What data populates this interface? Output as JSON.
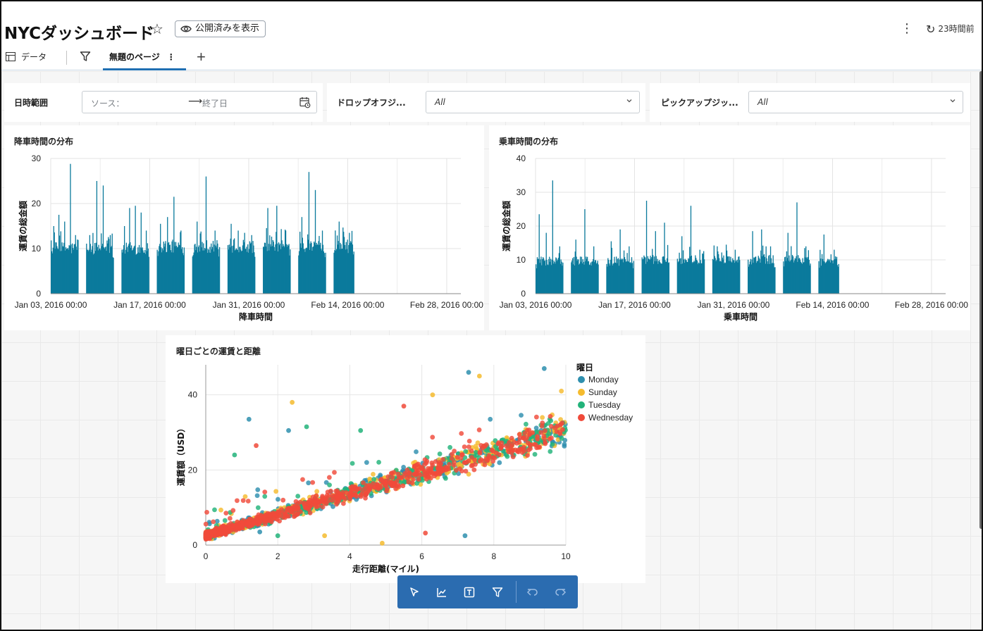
{
  "header": {
    "title": "NYCダッシュボード",
    "published_label": "公開済みを表示",
    "refresh_label": "23時間前"
  },
  "tabs": {
    "data_label": "データ",
    "page_label": "無題のページ"
  },
  "filters": {
    "date_range": {
      "label": "日時範囲",
      "start_placeholder": "ソース：",
      "end_placeholder": "終了日"
    },
    "dropoff": {
      "label": "ドロップオフジ...",
      "value": "All"
    },
    "pickup": {
      "label": "ピックアップジッ...",
      "value": "All"
    }
  },
  "charts": {
    "dropoff_hist": {
      "title": "降車時間の分布",
      "xlabel": "降車時間",
      "ylabel": "運賃の総金額"
    },
    "pickup_hist": {
      "title": "乗車時間の分布",
      "xlabel": "乗車時間",
      "ylabel": "運賃の総金額"
    },
    "scatter": {
      "title": "曜日ごとの運賃と距離",
      "xlabel": "走行距離(マイル)",
      "ylabel": "運賃額（USD）",
      "legend_title": "曜日"
    }
  },
  "chart_data": [
    {
      "type": "bar",
      "title": "降車時間の分布",
      "xlabel": "降車時間",
      "ylabel": "運賃の総金額",
      "x_ticks": [
        "Jan 03, 2016 00:00",
        "Jan 17, 2016 00:00",
        "Jan 31, 2016 00:00",
        "Feb 14, 2016 00:00",
        "Feb 28, 2016 00:00"
      ],
      "y_ticks": [
        0,
        10,
        20,
        30
      ],
      "ylim": [
        0,
        30
      ],
      "xlim": [
        "2016-01-03",
        "2016-03-01"
      ],
      "grid": true,
      "color": "#0b7a9c",
      "data_blocks": [
        {
          "start": "2016-01-03",
          "end": "2016-01-06",
          "typical": 11.5,
          "peaks": [
            15,
            17.5,
            16,
            28.8,
            13
          ]
        },
        {
          "start": "2016-01-08",
          "end": "2016-01-11",
          "typical": 11.5,
          "peaks": [
            13,
            25,
            24,
            13
          ]
        },
        {
          "start": "2016-01-13",
          "end": "2016-01-16",
          "typical": 11.5,
          "peaks": [
            15,
            19,
            19.5,
            18,
            14
          ]
        },
        {
          "start": "2016-01-18",
          "end": "2016-01-21",
          "typical": 12,
          "peaks": [
            15.5,
            17,
            21.5,
            14
          ]
        },
        {
          "start": "2016-01-23",
          "end": "2016-01-26",
          "typical": 12,
          "peaks": [
            16,
            26,
            14
          ]
        },
        {
          "start": "2016-01-28",
          "end": "2016-01-31",
          "typical": 12,
          "peaks": [
            15.5,
            14,
            13.5,
            13
          ]
        },
        {
          "start": "2016-02-02",
          "end": "2016-02-05",
          "typical": 12,
          "peaks": [
            19,
            19.5,
            14
          ]
        },
        {
          "start": "2016-02-07",
          "end": "2016-02-10",
          "typical": 12,
          "peaks": [
            17,
            27,
            23,
            14
          ]
        },
        {
          "start": "2016-02-12",
          "end": "2016-02-14",
          "typical": 12,
          "peaks": [
            16,
            13.5
          ]
        }
      ]
    },
    {
      "type": "bar",
      "title": "乗車時間の分布",
      "xlabel": "乗車時間",
      "ylabel": "運賃の総金額",
      "x_ticks": [
        "Jan 03, 2016 00:00",
        "Jan 17, 2016 00:00",
        "Jan 31, 2016 00:00",
        "Feb 14, 2016 00:00",
        "Feb 28, 2016 00:00"
      ],
      "y_ticks": [
        0,
        10,
        20,
        30,
        40
      ],
      "ylim": [
        0,
        40
      ],
      "xlim": [
        "2016-01-03",
        "2016-03-01"
      ],
      "grid": true,
      "color": "#0b7a9c",
      "data_blocks": [
        {
          "start": "2016-01-03",
          "end": "2016-01-06",
          "typical": 11,
          "peaks": [
            23.5,
            18,
            33.5,
            14
          ]
        },
        {
          "start": "2016-01-08",
          "end": "2016-01-11",
          "typical": 11,
          "peaks": [
            16,
            25,
            14
          ]
        },
        {
          "start": "2016-01-13",
          "end": "2016-01-16",
          "typical": 11,
          "peaks": [
            15.5,
            19,
            14
          ]
        },
        {
          "start": "2016-01-18",
          "end": "2016-01-21",
          "typical": 11.5,
          "peaks": [
            27.5,
            18.5,
            21
          ]
        },
        {
          "start": "2016-01-23",
          "end": "2016-01-26",
          "typical": 11.5,
          "peaks": [
            17,
            26,
            13
          ]
        },
        {
          "start": "2016-01-28",
          "end": "2016-01-31",
          "typical": 11.5,
          "peaks": [
            14,
            14.5,
            13
          ]
        },
        {
          "start": "2016-02-02",
          "end": "2016-02-05",
          "typical": 11.5,
          "peaks": [
            18.5,
            19,
            14
          ]
        },
        {
          "start": "2016-02-07",
          "end": "2016-02-10",
          "typical": 11.5,
          "peaks": [
            18,
            27,
            14
          ]
        },
        {
          "start": "2016-02-12",
          "end": "2016-02-14",
          "typical": 11,
          "peaks": [
            17.5,
            13
          ]
        }
      ]
    },
    {
      "type": "scatter",
      "title": "曜日ごとの運賃と距離",
      "xlabel": "走行距離(マイル)",
      "ylabel": "運賃額（USD）",
      "xlim": [
        0,
        10
      ],
      "ylim": [
        0,
        48
      ],
      "x_ticks": [
        0,
        2,
        4,
        6,
        8,
        10
      ],
      "y_ticks": [
        0,
        20,
        40
      ],
      "grid": true,
      "legend_title": "曜日",
      "legend_position": "right",
      "series": [
        {
          "name": "Monday",
          "color": "#2e8fae",
          "trend": [
            2.5,
            2.8
          ],
          "outliers": [
            [
              7.3,
              46
            ],
            [
              9.4,
              47
            ],
            [
              1.2,
              33.5
            ],
            [
              2.3,
              30.5
            ],
            [
              7.2,
              2.5
            ],
            [
              1.5,
              3.5
            ]
          ]
        },
        {
          "name": "Sunday",
          "color": "#f5bb2e",
          "trend": [
            2.5,
            2.8
          ],
          "outliers": [
            [
              6.3,
              40
            ],
            [
              7.6,
              45
            ],
            [
              2.4,
              38
            ],
            [
              3.3,
              2.5
            ],
            [
              4.9,
              0.5
            ]
          ]
        },
        {
          "name": "Tuesday",
          "color": "#22b37a",
          "trend": [
            2.5,
            2.8
          ],
          "outliers": [
            [
              2.8,
              31.5
            ],
            [
              0.8,
              24
            ],
            [
              4.3,
              30.5
            ],
            [
              2.0,
              2.5
            ]
          ]
        },
        {
          "name": "Wednesday",
          "color": "#f04a3a",
          "trend": [
            2.5,
            2.8
          ],
          "outliers": [
            [
              5.5,
              37
            ],
            [
              6.1,
              3.2
            ],
            [
              1.4,
              26.5
            ]
          ]
        }
      ]
    }
  ]
}
